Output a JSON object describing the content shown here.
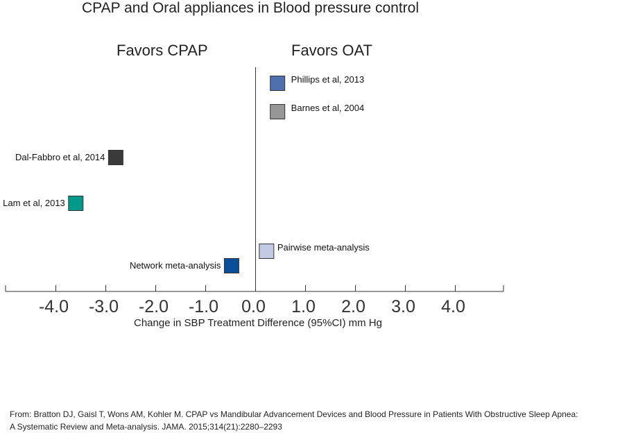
{
  "chart_data": {
    "type": "scatter",
    "title": "CPAP and Oral appliances in Blood pressure control",
    "annotations": {
      "left": "Favors  CPAP",
      "right": "Favors  OAT"
    },
    "xlabel": "Change in SBP Treatment Difference (95%CI) mm Hg",
    "ylabel": "",
    "xlim": [
      -5.0,
      5.0
    ],
    "xticks": [
      -4.0,
      -3.0,
      -2.0,
      -1.0,
      0.0,
      1.0,
      2.0,
      3.0,
      4.0
    ],
    "xtick_labels": [
      "-4.0",
      "-3.0",
      "-2.0",
      "-1.0",
      "0.0",
      "1.0",
      "2.0",
      "3.0",
      "4.0"
    ],
    "reference_line": 0.0,
    "grid": false,
    "series": [
      {
        "name": "Phillips et al, 2013",
        "x": 0.44,
        "color": "#4f6fae",
        "label_side": "right"
      },
      {
        "name": "Barnes et al, 2004",
        "x": 0.44,
        "color": "#979797",
        "label_side": "right"
      },
      {
        "name": "Dal-Fabbro et al, 2014",
        "x": -2.8,
        "color": "#3a3a3a",
        "label_side": "left"
      },
      {
        "name": "Lam et al, 2013",
        "x": -3.6,
        "color": "#00998a",
        "label_side": "left"
      },
      {
        "name": "Pairwise meta-analysis",
        "x": 0.22,
        "color": "#c3cbe2",
        "label_side": "right"
      },
      {
        "name": "Network meta-analysis",
        "x": -0.48,
        "color": "#0b4f9b",
        "label_side": "left"
      }
    ]
  },
  "source": {
    "line1": "From: Bratton DJ, Gaisl T, Wons AM, Kohler M. CPAP vs Mandibular Advancement Devices and Blood Pressure in Patients With Obstructive Sleep Apnea:",
    "line2": "A Systematic Review and Meta-analysis. JAMA. 2015;314(21):2280–2293"
  }
}
